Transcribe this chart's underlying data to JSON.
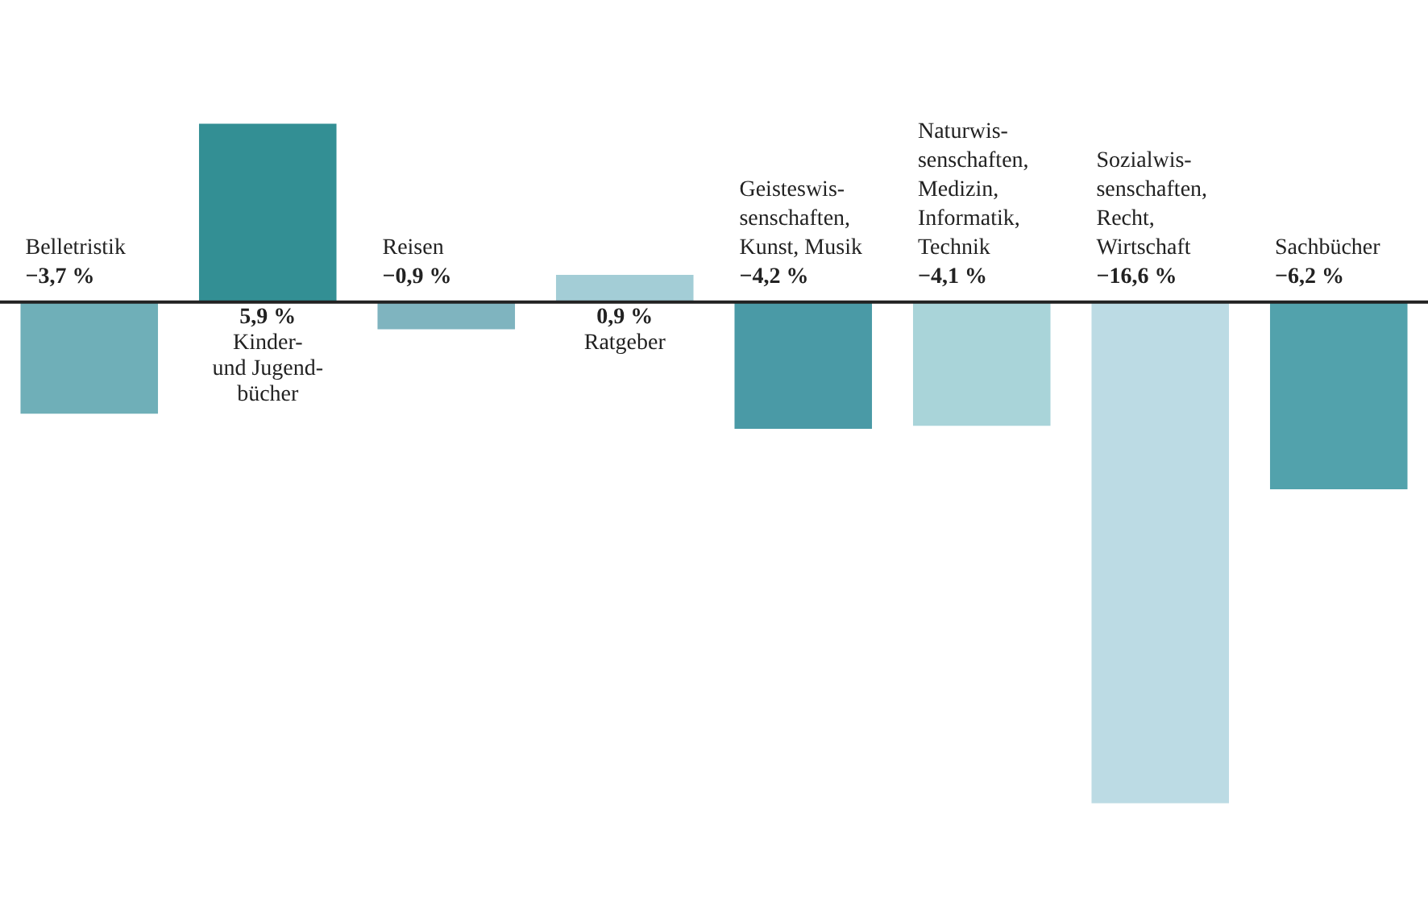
{
  "chart_data": {
    "type": "bar",
    "categories": [
      "Belletristik",
      "Kinder-\nund Jugend-\nbücher",
      "Reisen",
      "Ratgeber",
      "Geisteswis-\nsenschaften,\nKunst, Musik",
      "Naturwis-\nsenschaften,\nMedizin,\nInformatik,\nTechnik",
      "Sozialwis-\nsenschaften,\nRecht,\nWirtschaft",
      "Sachbücher"
    ],
    "values": [
      -3.7,
      5.9,
      -0.9,
      0.9,
      -4.2,
      -4.1,
      -16.6,
      -6.2
    ],
    "value_labels": [
      "−3,7 %",
      "5,9 %",
      "−0,9 %",
      "0,9 %",
      "−4,2 %",
      "−4,1 %",
      "−16,6 %",
      "−6,2 %"
    ],
    "colors": [
      "#6fafb8",
      "#338f94",
      "#7fb4bf",
      "#a3cdd6",
      "#4a9aa6",
      "#a9d4d9",
      "#bcdbe4",
      "#52a2ac"
    ],
    "legend": false
  }
}
